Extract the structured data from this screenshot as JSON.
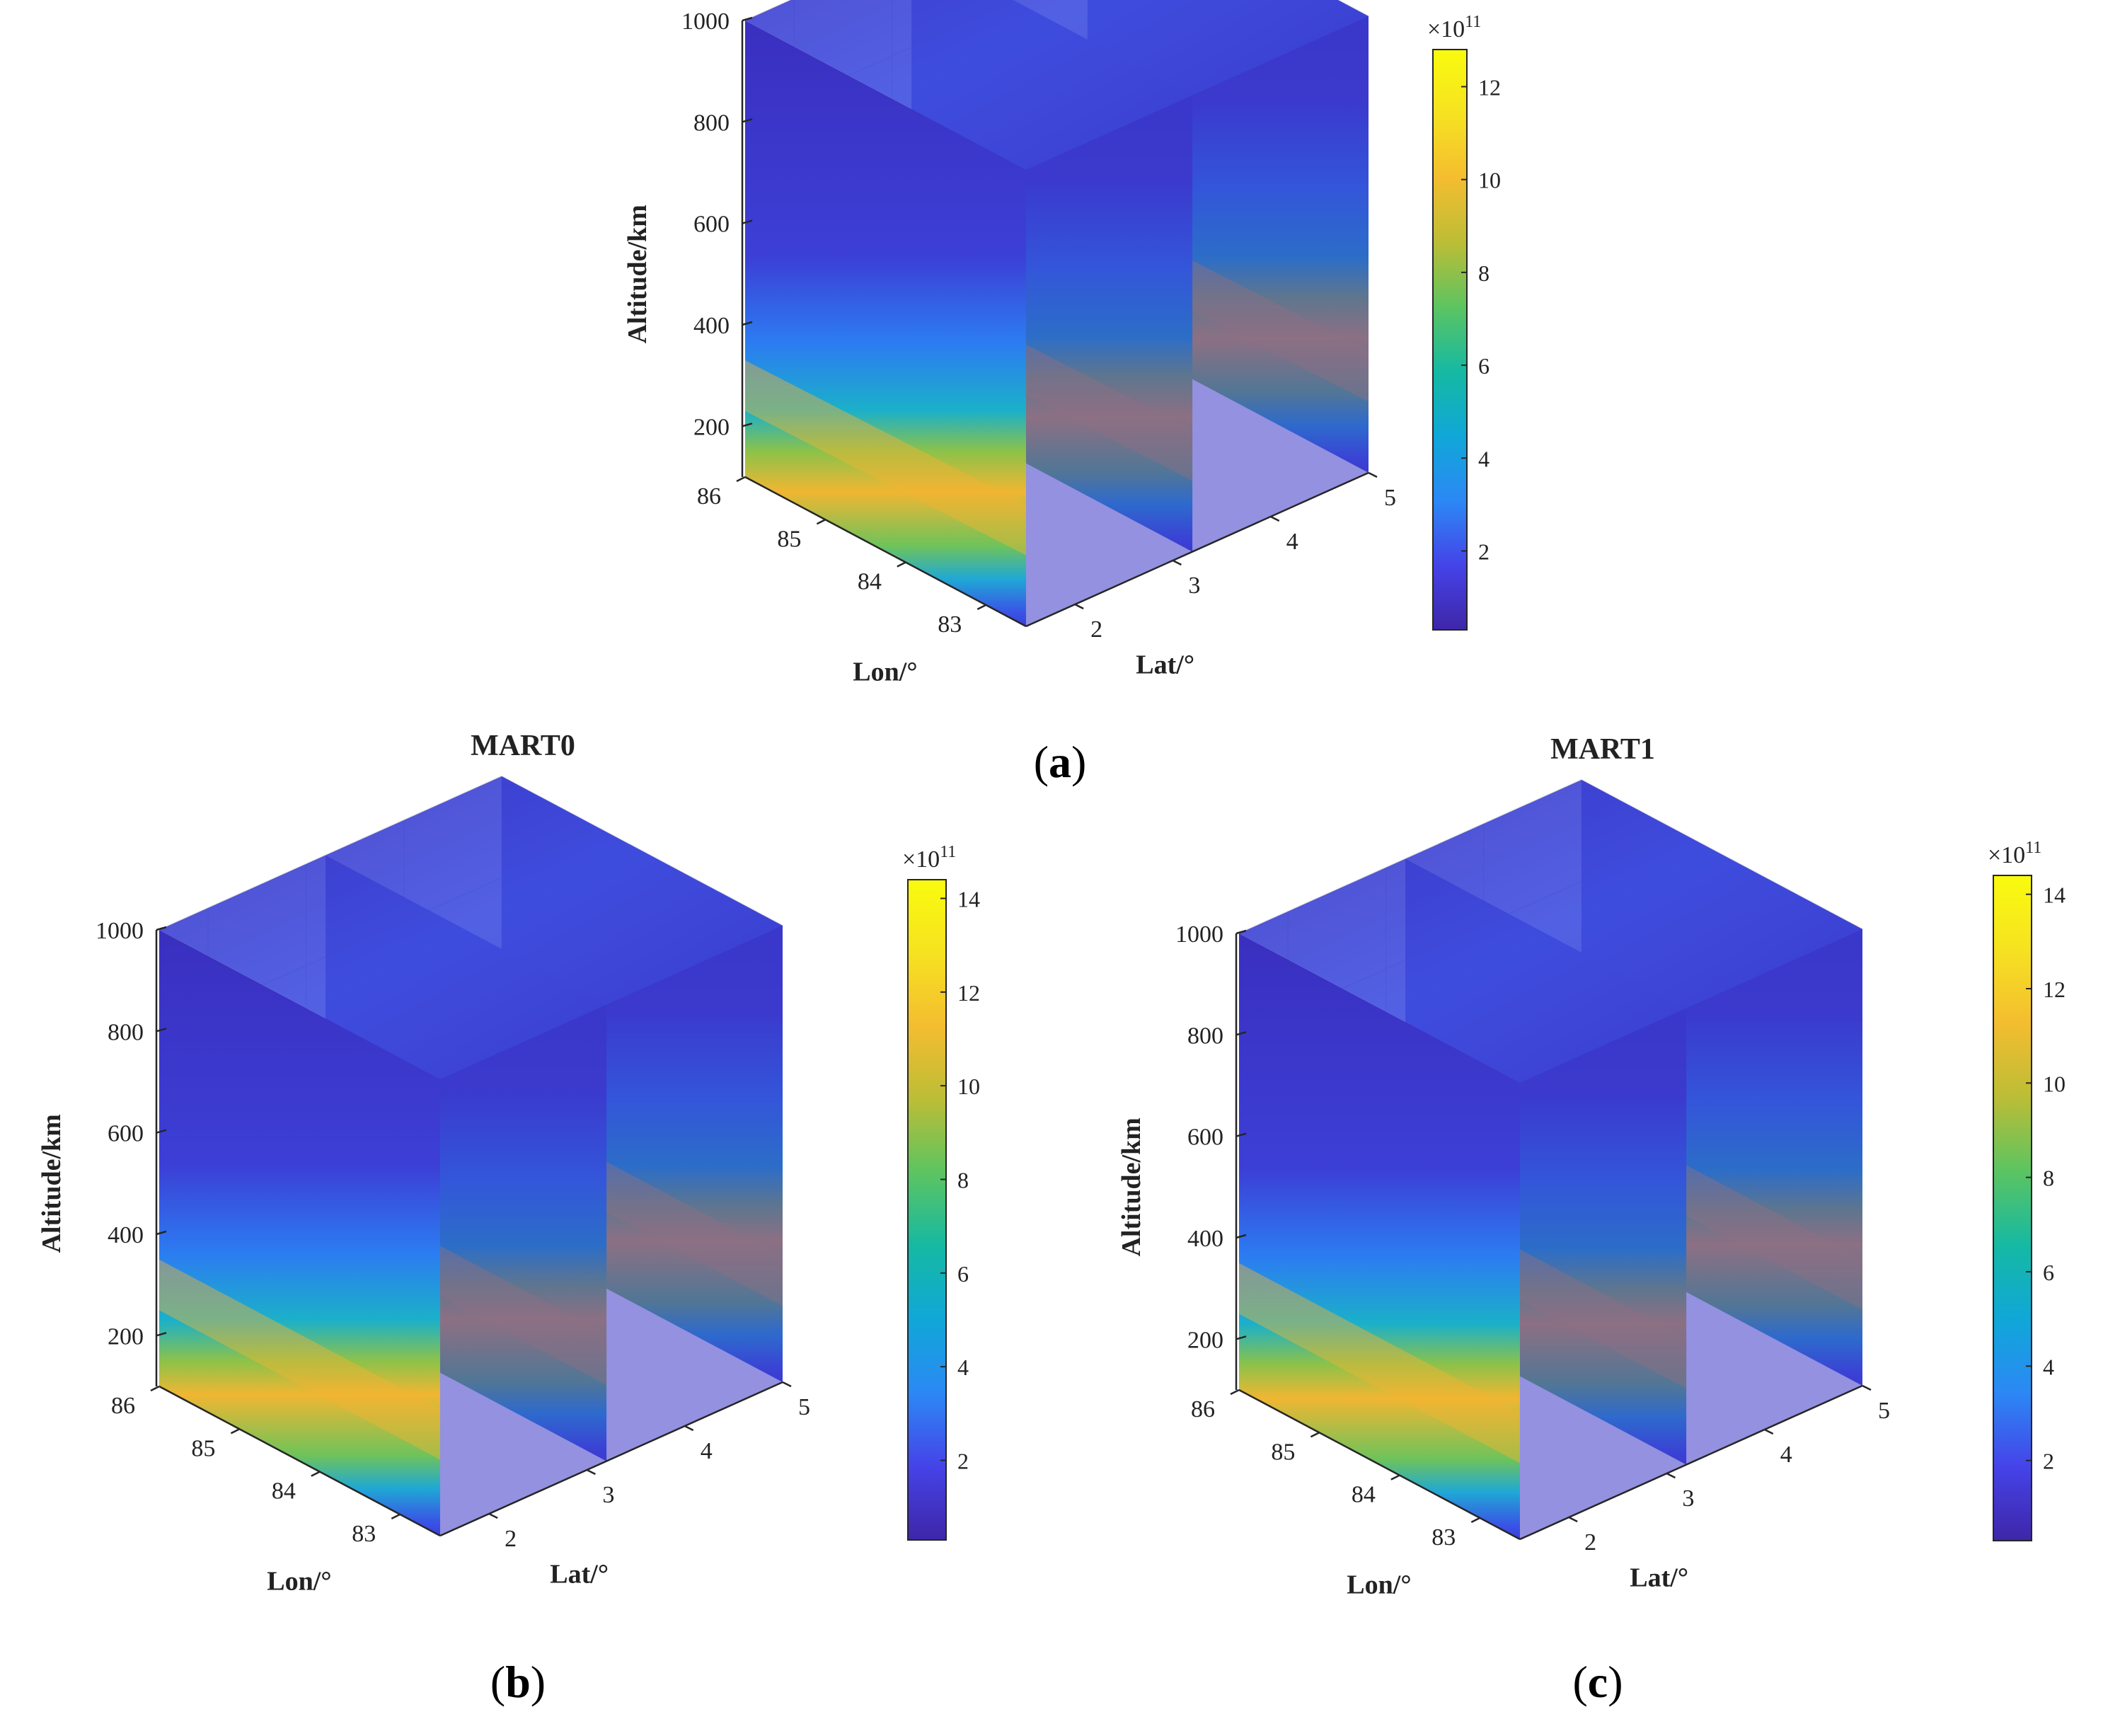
{
  "panels": [
    {
      "letter": "a"
    },
    {
      "letter": "b"
    },
    {
      "letter": "c"
    }
  ],
  "colors": {
    "parula": [
      "#3e26a8",
      "#4543e8",
      "#2c88f5",
      "#10a7d8",
      "#15b9a3",
      "#5cc461",
      "#bcbd36",
      "#f4bd30",
      "#f6e221",
      "#f9fb0e"
    ],
    "background_low": "#3b36c9",
    "axis": "#262626",
    "grid": "#dcdcdc"
  },
  "chart_data": [
    {
      "type": "heatmap",
      "subtype": "3d-volume-slices",
      "title": "",
      "xlabel": "Lon/°",
      "ylabel": "Lat/°",
      "zlabel": "Altitude/km",
      "xlim": [
        82.5,
        86
      ],
      "ylim": [
        1.5,
        5
      ],
      "zlim": [
        100,
        1000
      ],
      "x_ticks": [
        "83",
        "84",
        "85",
        "86"
      ],
      "y_ticks": [
        "2",
        "3",
        "4",
        "5"
      ],
      "z_ticks": [
        "200",
        "400",
        "600",
        "800",
        "1000"
      ],
      "slices": {
        "lat": [
          1.5,
          3.2,
          5
        ]
      },
      "peak_altitude_km": [
        300,
        250
      ],
      "colorbar": {
        "exponent_label": "×10",
        "exponent_power": "11",
        "range": [
          0.3,
          12.8
        ],
        "ticks": [
          "2",
          "4",
          "6",
          "8",
          "10",
          "12"
        ]
      },
      "grid": true,
      "colormap": "parula"
    },
    {
      "type": "heatmap",
      "subtype": "3d-volume-slices",
      "title": "MART0",
      "xlabel": "Lon/°",
      "ylabel": "Lat/°",
      "zlabel": "Altitude/km",
      "xlim": [
        82.5,
        86
      ],
      "ylim": [
        1.5,
        5
      ],
      "zlim": [
        100,
        1000
      ],
      "x_ticks": [
        "83",
        "84",
        "85",
        "86"
      ],
      "y_ticks": [
        "2",
        "3",
        "4",
        "5"
      ],
      "z_ticks": [
        "200",
        "400",
        "600",
        "800",
        "1000"
      ],
      "slices": {
        "lat": [
          1.5,
          3.2,
          5
        ]
      },
      "peak_altitude_km": [
        310,
        270
      ],
      "colorbar": {
        "exponent_label": "×10",
        "exponent_power": "11",
        "range": [
          0.3,
          14.4
        ],
        "ticks": [
          "2",
          "4",
          "6",
          "8",
          "10",
          "12",
          "14"
        ]
      },
      "grid": true,
      "colormap": "parula"
    },
    {
      "type": "heatmap",
      "subtype": "3d-volume-slices",
      "title": "MART1",
      "xlabel": "Lon/°",
      "ylabel": "Lat/°",
      "zlabel": "Altitude/km",
      "xlim": [
        82.5,
        86
      ],
      "ylim": [
        1.5,
        5
      ],
      "zlim": [
        100,
        1000
      ],
      "x_ticks": [
        "83",
        "84",
        "85",
        "86"
      ],
      "y_ticks": [
        "2",
        "3",
        "4",
        "5"
      ],
      "z_ticks": [
        "200",
        "400",
        "600",
        "800",
        "1000"
      ],
      "slices": {
        "lat": [
          1.5,
          3.2,
          5
        ]
      },
      "peak_altitude_km": [
        310,
        270
      ],
      "colorbar": {
        "exponent_label": "×10",
        "exponent_power": "11",
        "range": [
          0.3,
          14.4
        ],
        "ticks": [
          "2",
          "4",
          "6",
          "8",
          "10",
          "12",
          "14"
        ]
      },
      "grid": true,
      "colormap": "parula"
    }
  ]
}
